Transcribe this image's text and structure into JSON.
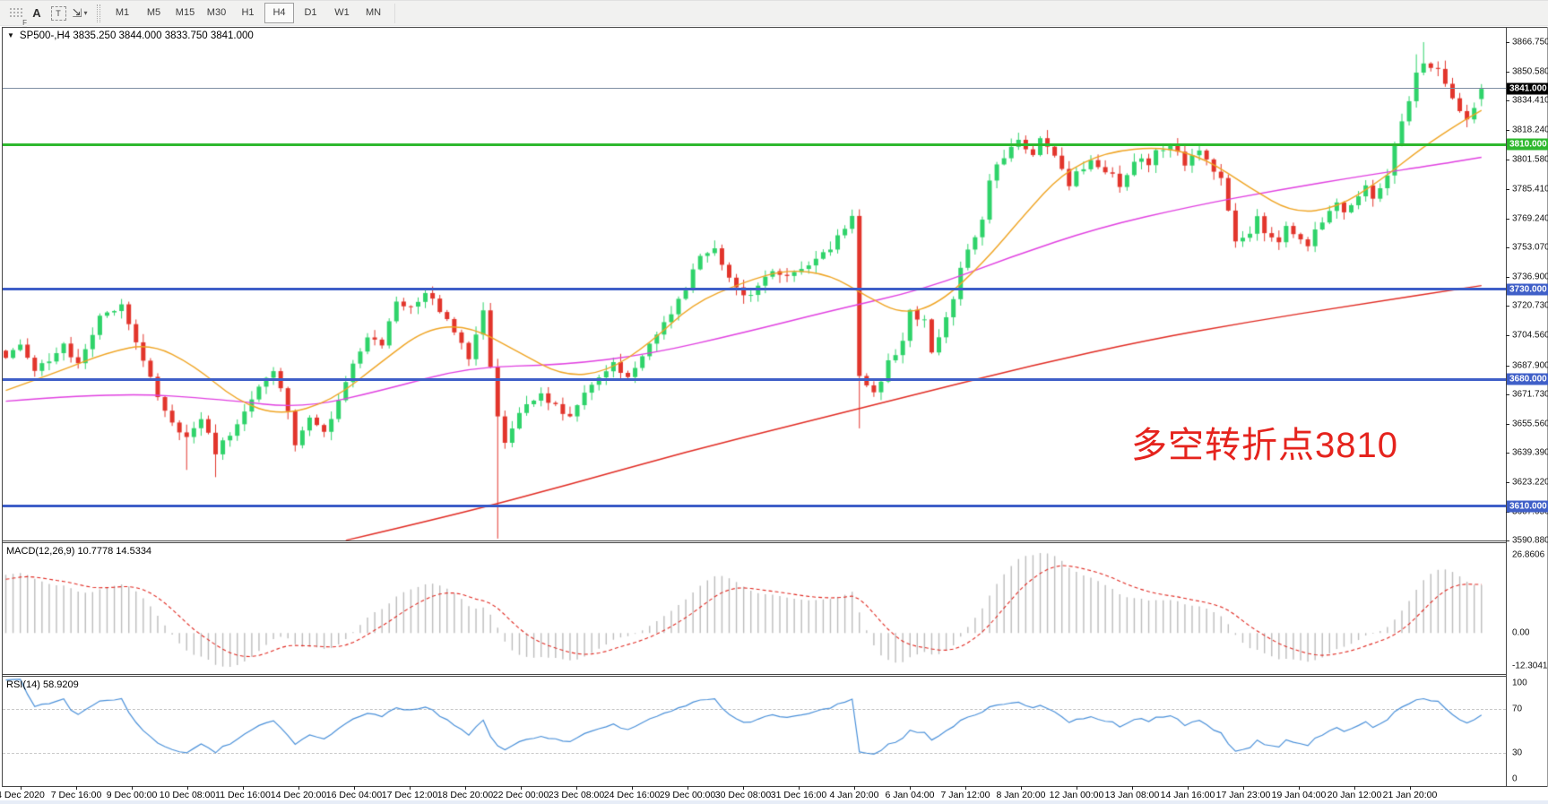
{
  "app": {
    "toolbar": {
      "tools": [
        {
          "name": "toolbar-grip",
          "glyph": "F"
        },
        {
          "name": "text-label-tool",
          "glyph": "A"
        },
        {
          "name": "text-box-tool",
          "glyph": "T"
        },
        {
          "name": "objects-tool",
          "glyph": "⇲",
          "caret": "▾"
        }
      ],
      "timeframes": [
        "M1",
        "M5",
        "M15",
        "M30",
        "H1",
        "H4",
        "D1",
        "W1",
        "MN"
      ],
      "active_timeframe": "H4"
    }
  },
  "chart": {
    "title": "SP500-,H4 3835.250 3844.000 3833.750 3841.000",
    "collapse_glyph": "▼",
    "annotation": {
      "text": "多空转折点3810",
      "color": "#e5231d"
    },
    "colors": {
      "bull": "#2fd36a",
      "bear": "#e2352c",
      "ma_slow": "#e02a22",
      "ma_medium": "#e040e0",
      "ma_fast": "#efa423",
      "macd_hist": "#bcbcbc",
      "macd_signal": "#e02a22",
      "rsi": "#4a90d9",
      "current_price_line": "#7f8ea3"
    },
    "price_axis": {
      "ticks": [
        "3866.750",
        "3850.580",
        "3834.410",
        "3818.240",
        "3801.580",
        "3785.410",
        "3769.240",
        "3753.070",
        "3736.900",
        "3720.730",
        "3704.560",
        "3687.900",
        "3671.730",
        "3655.560",
        "3639.390",
        "3623.220",
        "3607.050",
        "3590.880"
      ]
    },
    "hlines": [
      {
        "label": "3841.000",
        "price": 3841.0,
        "type": "current-price",
        "color": "#7f8ea3",
        "badge_bg": "#000000",
        "badge_fg": "#ffffff",
        "thickness": 1
      },
      {
        "label": "3810.000",
        "price": 3810.0,
        "type": "level",
        "color": "#2eb82e",
        "badge_bg": "#2eb82e",
        "badge_fg": "#ffffff",
        "thickness": 3
      },
      {
        "label": "3730.000",
        "price": 3730.0,
        "type": "level",
        "color": "#3f5fc8",
        "badge_bg": "#3f5fc8",
        "badge_fg": "#ffffff",
        "thickness": 3
      },
      {
        "label": "3680.000",
        "price": 3680.0,
        "type": "level",
        "color": "#3f5fc8",
        "badge_bg": "#3f5fc8",
        "badge_fg": "#ffffff",
        "thickness": 3
      },
      {
        "label": "3610.000",
        "price": 3610.0,
        "type": "level",
        "color": "#3f5fc8",
        "badge_bg": "#3f5fc8",
        "badge_fg": "#ffffff",
        "thickness": 3
      }
    ],
    "time_axis": {
      "labels": [
        "4 Dec 2020",
        "7 Dec 16:00",
        "9 Dec 00:00",
        "10 Dec 08:00",
        "11 Dec 16:00",
        "14 Dec 20:00",
        "16 Dec 04:00",
        "17 Dec 12:00",
        "18 Dec 20:00",
        "22 Dec 00:00",
        "23 Dec 08:00",
        "24 Dec 16:00",
        "29 Dec 00:00",
        "30 Dec 08:00",
        "31 Dec 16:00",
        "4 Jan 20:00",
        "6 Jan 04:00",
        "7 Jan 12:00",
        "8 Jan 20:00",
        "12 Jan 00:00",
        "13 Jan 08:00",
        "14 Jan 16:00",
        "17 Jan 23:00",
        "19 Jan 04:00",
        "20 Jan 12:00",
        "21 Jan 20:00"
      ]
    }
  },
  "chart_data": {
    "type": "candlestick",
    "symbol": "SP500-",
    "timeframe": "H4",
    "ohlc_current": {
      "open": 3835.25,
      "high": 3844.0,
      "low": 3833.75,
      "close": 3841.0
    },
    "ylim": [
      3590.88,
      3875.18
    ],
    "bars": 205,
    "close_anchors": [
      [
        0,
        3692
      ],
      [
        2,
        3700
      ],
      [
        4,
        3683
      ],
      [
        8,
        3700
      ],
      [
        10,
        3688
      ],
      [
        13,
        3715
      ],
      [
        16,
        3722
      ],
      [
        18,
        3700
      ],
      [
        21,
        3670
      ],
      [
        23,
        3655
      ],
      [
        25,
        3648
      ],
      [
        27,
        3660
      ],
      [
        29,
        3640
      ],
      [
        32,
        3655
      ],
      [
        35,
        3675
      ],
      [
        37,
        3685
      ],
      [
        39,
        3662
      ],
      [
        40,
        3645
      ],
      [
        42,
        3660
      ],
      [
        44,
        3650
      ],
      [
        46,
        3668
      ],
      [
        48,
        3690
      ],
      [
        50,
        3705
      ],
      [
        52,
        3700
      ],
      [
        54,
        3725
      ],
      [
        56,
        3720
      ],
      [
        58,
        3728
      ],
      [
        60,
        3718
      ],
      [
        62,
        3705
      ],
      [
        64,
        3692
      ],
      [
        66,
        3718
      ],
      [
        68,
        3660
      ],
      [
        69,
        3645
      ],
      [
        70,
        3652
      ],
      [
        72,
        3668
      ],
      [
        74,
        3672
      ],
      [
        76,
        3665
      ],
      [
        78,
        3658
      ],
      [
        80,
        3673
      ],
      [
        82,
        3680
      ],
      [
        84,
        3688
      ],
      [
        86,
        3683
      ],
      [
        88,
        3692
      ],
      [
        90,
        3705
      ],
      [
        92,
        3718
      ],
      [
        94,
        3730
      ],
      [
        96,
        3748
      ],
      [
        98,
        3752
      ],
      [
        100,
        3738
      ],
      [
        102,
        3725
      ],
      [
        104,
        3732
      ],
      [
        106,
        3742
      ],
      [
        108,
        3736
      ],
      [
        110,
        3742
      ],
      [
        112,
        3745
      ],
      [
        114,
        3752
      ],
      [
        116,
        3765
      ],
      [
        117,
        3770
      ],
      [
        118,
        3680
      ],
      [
        120,
        3672
      ],
      [
        121,
        3680
      ],
      [
        122,
        3690
      ],
      [
        124,
        3700
      ],
      [
        125,
        3718
      ],
      [
        127,
        3712
      ],
      [
        128,
        3695
      ],
      [
        129,
        3705
      ],
      [
        131,
        3725
      ],
      [
        132,
        3740
      ],
      [
        133,
        3752
      ],
      [
        135,
        3768
      ],
      [
        136,
        3790
      ],
      [
        137,
        3800
      ],
      [
        139,
        3808
      ],
      [
        140,
        3812
      ],
      [
        142,
        3805
      ],
      [
        143,
        3815
      ],
      [
        144,
        3808
      ],
      [
        146,
        3798
      ],
      [
        147,
        3788
      ],
      [
        148,
        3795
      ],
      [
        150,
        3800
      ],
      [
        151,
        3798
      ],
      [
        153,
        3792
      ],
      [
        154,
        3785
      ],
      [
        155,
        3795
      ],
      [
        157,
        3803
      ],
      [
        158,
        3800
      ],
      [
        159,
        3806
      ],
      [
        161,
        3810
      ],
      [
        162,
        3805
      ],
      [
        163,
        3800
      ],
      [
        165,
        3808
      ],
      [
        166,
        3802
      ],
      [
        168,
        3790
      ],
      [
        169,
        3772
      ],
      [
        170,
        3755
      ],
      [
        172,
        3762
      ],
      [
        173,
        3770
      ],
      [
        174,
        3762
      ],
      [
        176,
        3755
      ],
      [
        177,
        3765
      ],
      [
        179,
        3758
      ],
      [
        180,
        3752
      ],
      [
        181,
        3762
      ],
      [
        183,
        3772
      ],
      [
        184,
        3778
      ],
      [
        185,
        3772
      ],
      [
        187,
        3780
      ],
      [
        188,
        3788
      ],
      [
        189,
        3782
      ],
      [
        191,
        3792
      ],
      [
        192,
        3810
      ],
      [
        194,
        3835
      ],
      [
        195,
        3850
      ],
      [
        196,
        3856
      ],
      [
        198,
        3852
      ],
      [
        199,
        3845
      ],
      [
        200,
        3835
      ],
      [
        202,
        3825
      ],
      [
        203,
        3832
      ],
      [
        204,
        3841
      ]
    ],
    "special_wicks": [
      {
        "i": 25,
        "low": 3630
      },
      {
        "i": 29,
        "low": 3626
      },
      {
        "i": 68,
        "low": 3592
      },
      {
        "i": 118,
        "low": 3653
      },
      {
        "i": 195,
        "high": 3860
      },
      {
        "i": 196,
        "high": 3866.75
      }
    ],
    "warmup": {
      "bars": 30,
      "start_close": 3600
    },
    "moving_averages": [
      {
        "name": "slow",
        "color": "#e02a22",
        "anchors": [
          [
            47,
            3591
          ],
          [
            62,
            3605
          ],
          [
            78,
            3622
          ],
          [
            94,
            3640
          ],
          [
            110,
            3656
          ],
          [
            126,
            3672
          ],
          [
            142,
            3688
          ],
          [
            158,
            3702
          ],
          [
            172,
            3712
          ],
          [
            186,
            3721
          ],
          [
            204,
            3732
          ]
        ]
      },
      {
        "name": "medium",
        "color": "#e040e0",
        "anchors": [
          [
            0,
            3668
          ],
          [
            15,
            3673
          ],
          [
            30,
            3669
          ],
          [
            41,
            3664
          ],
          [
            52,
            3674
          ],
          [
            64,
            3687
          ],
          [
            77,
            3688
          ],
          [
            89,
            3694
          ],
          [
            102,
            3706
          ],
          [
            114,
            3718
          ],
          [
            127,
            3730
          ],
          [
            139,
            3748
          ],
          [
            151,
            3764
          ],
          [
            164,
            3776
          ],
          [
            176,
            3785
          ],
          [
            188,
            3793
          ],
          [
            198,
            3799
          ],
          [
            204,
            3803
          ]
        ]
      },
      {
        "name": "fast",
        "color": "#efa423",
        "anchors": [
          [
            0,
            3674
          ],
          [
            7,
            3684
          ],
          [
            14,
            3695
          ],
          [
            20,
            3700
          ],
          [
            26,
            3688
          ],
          [
            32,
            3668
          ],
          [
            38,
            3660
          ],
          [
            45,
            3668
          ],
          [
            52,
            3690
          ],
          [
            58,
            3708
          ],
          [
            64,
            3710
          ],
          [
            71,
            3695
          ],
          [
            77,
            3682
          ],
          [
            83,
            3684
          ],
          [
            89,
            3700
          ],
          [
            95,
            3722
          ],
          [
            102,
            3734
          ],
          [
            108,
            3741
          ],
          [
            114,
            3738
          ],
          [
            119,
            3726
          ],
          [
            124,
            3716
          ],
          [
            129,
            3722
          ],
          [
            135,
            3744
          ],
          [
            141,
            3772
          ],
          [
            146,
            3794
          ],
          [
            152,
            3806
          ],
          [
            160,
            3809
          ],
          [
            166,
            3802
          ],
          [
            172,
            3786
          ],
          [
            178,
            3772
          ],
          [
            184,
            3775
          ],
          [
            190,
            3790
          ],
          [
            196,
            3809
          ],
          [
            201,
            3822
          ],
          [
            204,
            3829
          ]
        ]
      }
    ],
    "indicators": {
      "macd": {
        "label": "MACD(12,26,9)",
        "value_main": "10.7778",
        "value_signal": "14.5334",
        "full_text": "MACD(12,26,9) 10.7778 14.5334",
        "params": [
          12,
          26,
          9
        ],
        "axis_max_label": "26.8606",
        "axis_zero_label": "0.00",
        "axis_min_label": "-12.3041"
      },
      "rsi": {
        "label": "RSI(14)",
        "value": "58.9209",
        "full_text": "RSI(14) 58.9209",
        "period": 14,
        "levels": [
          70,
          30
        ],
        "axis_labels": [
          "100",
          "70",
          "30",
          "0"
        ]
      }
    }
  }
}
